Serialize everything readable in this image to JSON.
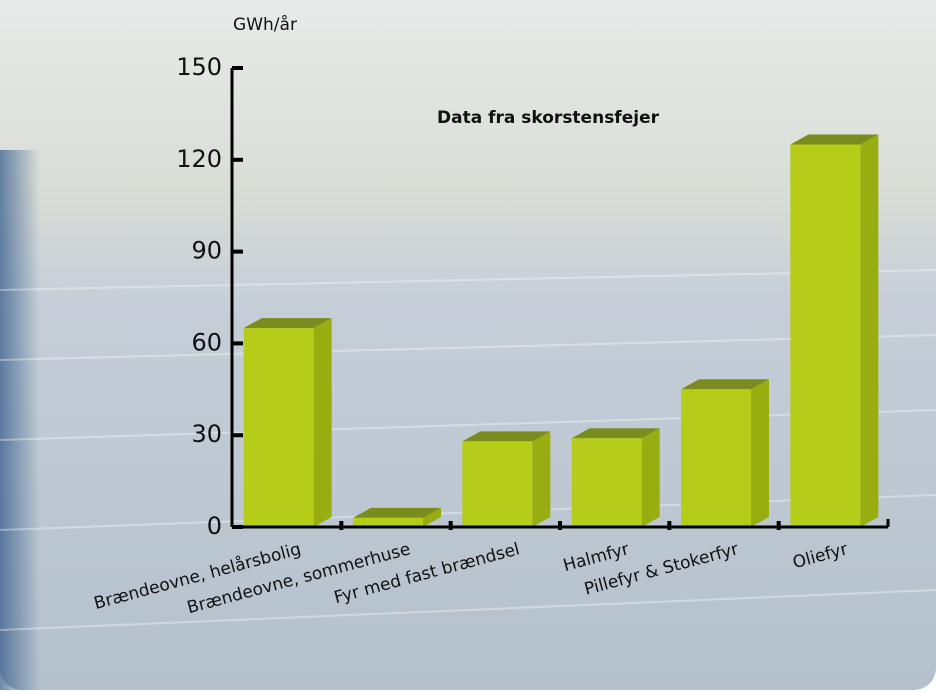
{
  "chart_data": {
    "type": "bar",
    "title": "Data fra skorstensfejer",
    "y_label": "GWh/år",
    "categories": [
      "Brændeovne, helårsbolig",
      "Brændeovne, sommerhuse",
      "Fyr med fast brændsel",
      "Halmfyr",
      "Pillefyr & Stokerfyr",
      "Oliefyr"
    ],
    "values": [
      65,
      3,
      28,
      29,
      45,
      125
    ],
    "color": "#b5cc18",
    "ylim": [
      0,
      150
    ],
    "yticks": [
      0,
      30,
      60,
      90,
      120,
      150
    ]
  }
}
